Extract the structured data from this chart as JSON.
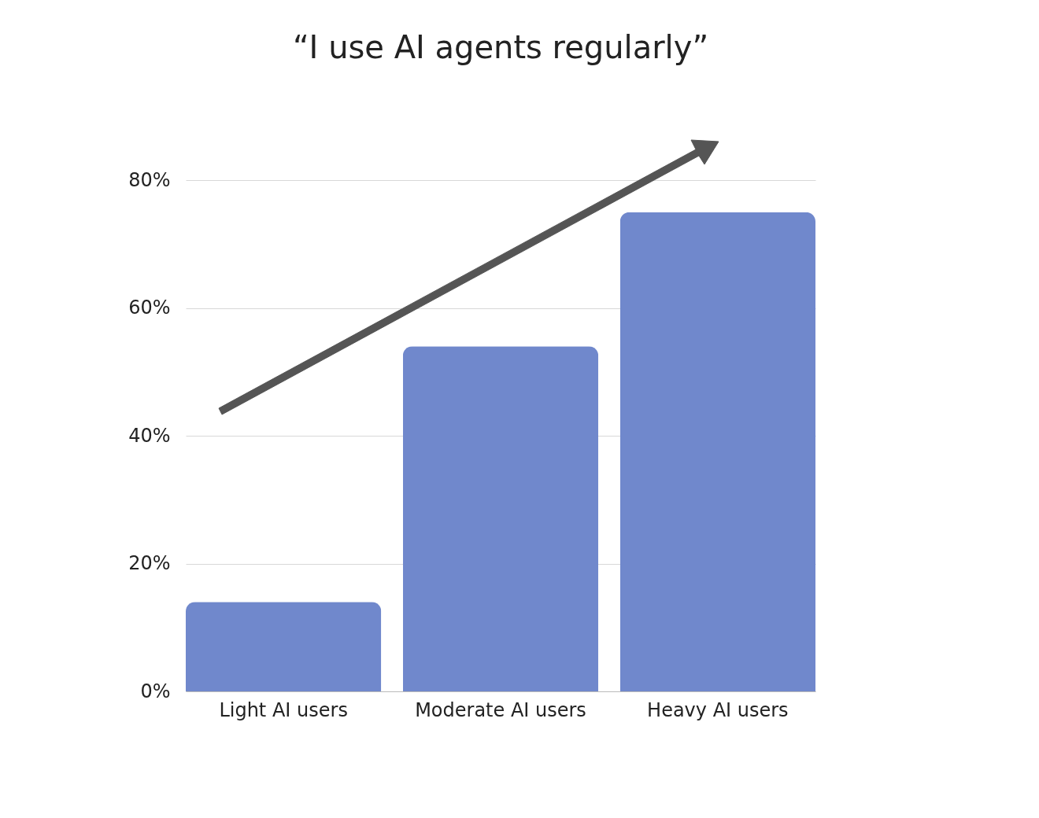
{
  "chart_data": {
    "type": "bar",
    "title": "“I use AI agents regularly”",
    "categories": [
      "Light AI users",
      "Moderate AI users",
      "Heavy AI users"
    ],
    "values": [
      14,
      54,
      75
    ],
    "color": "#7088cc",
    "ylim": [
      0,
      80
    ],
    "yticks": [
      {
        "value": 0,
        "label": "0%"
      },
      {
        "value": 20,
        "label": "20%"
      },
      {
        "value": 40,
        "label": "40%"
      },
      {
        "value": 60,
        "label": "60%"
      },
      {
        "value": 80,
        "label": "80%"
      }
    ],
    "grid": "y"
  }
}
